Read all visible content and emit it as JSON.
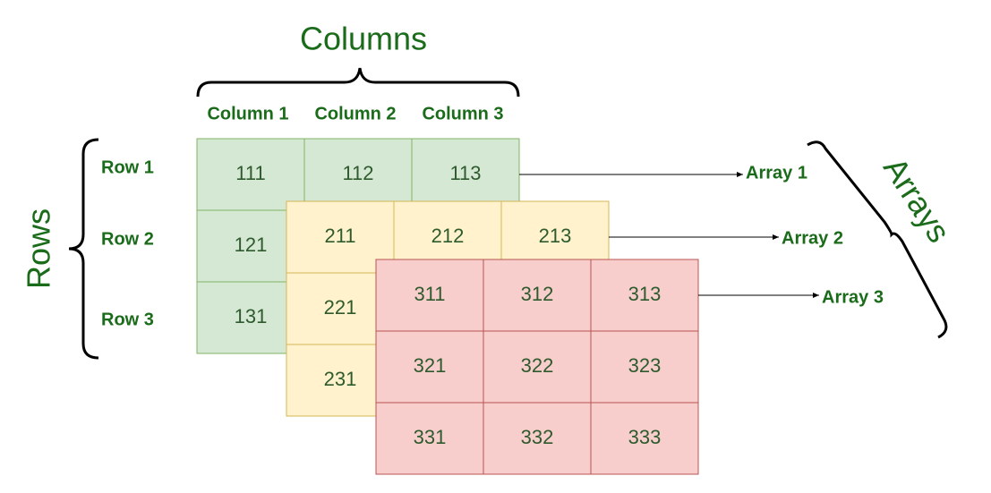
{
  "columns": {
    "title": "Columns",
    "labels": [
      "Column 1",
      "Column 2",
      "Column 3"
    ]
  },
  "rows": {
    "title": "Rows",
    "labels": [
      "Row 1",
      "Row 2",
      "Row 3"
    ]
  },
  "arrays": {
    "title": "Arrays",
    "items": [
      {
        "label": "Array 1",
        "rows": [
          [
            "111",
            "112",
            "113"
          ],
          [
            "121"
          ],
          [
            "131"
          ]
        ]
      },
      {
        "label": "Array 2",
        "rows": [
          [
            "211",
            "212",
            "213"
          ],
          [
            "221"
          ],
          [
            "231"
          ]
        ]
      },
      {
        "label": "Array 3",
        "rows": [
          [
            "311",
            "312",
            "313"
          ],
          [
            "321",
            "322",
            "323"
          ],
          [
            "331",
            "332",
            "333"
          ]
        ]
      }
    ]
  }
}
